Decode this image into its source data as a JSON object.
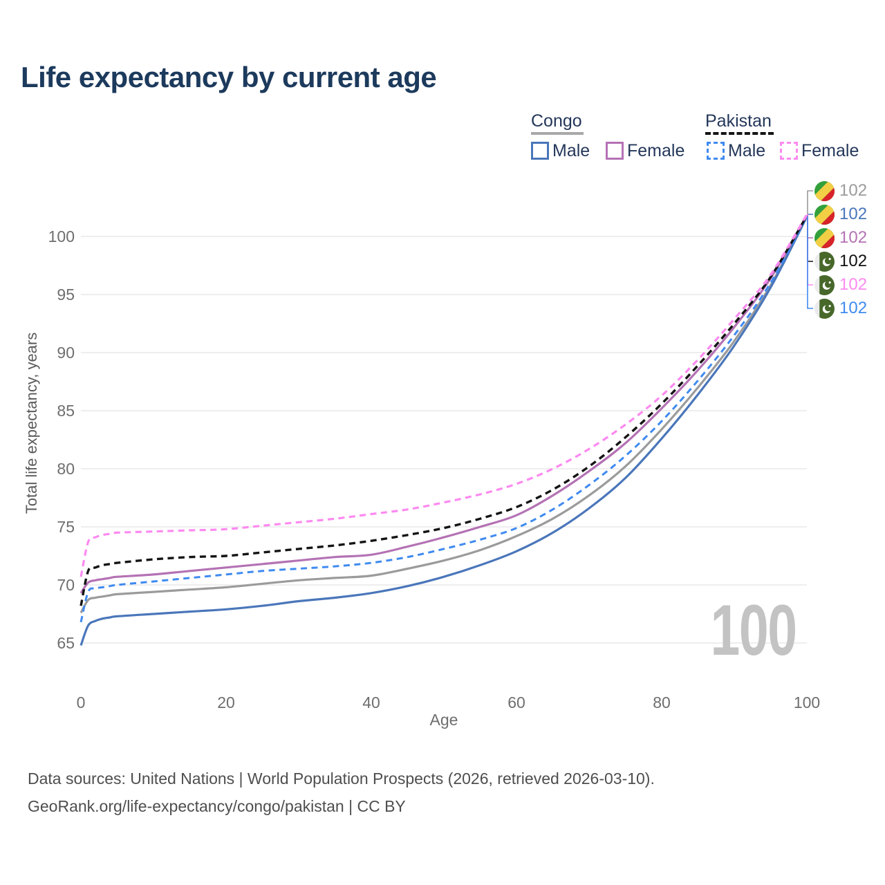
{
  "title": "Life expectancy by current age",
  "watermark_age": "100",
  "legend": {
    "groups": [
      {
        "label": "Congo",
        "underline_style": "solid",
        "underline_color": "#a8a8a8",
        "items": [
          {
            "label": "Male",
            "color": "#4a76ba",
            "dashed": false
          },
          {
            "label": "Female",
            "color": "#b472b4",
            "dashed": false
          }
        ]
      },
      {
        "label": "Pakistan",
        "underline_style": "dashed",
        "underline_color": "#141414",
        "items": [
          {
            "label": "Male",
            "color": "#3f8af0",
            "dashed": true
          },
          {
            "label": "Female",
            "color": "#fc8af0",
            "dashed": true
          }
        ]
      }
    ]
  },
  "end_labels": [
    {
      "flag": "congo",
      "series": "Congo Both sexes",
      "value": "102",
      "color": "#9b9b9b"
    },
    {
      "flag": "congo",
      "series": "Congo Male",
      "value": "102",
      "color": "#4a76ba"
    },
    {
      "flag": "congo",
      "series": "Congo Female",
      "value": "102",
      "color": "#b472b4"
    },
    {
      "flag": "pakistan",
      "series": "Pakistan Both sexes",
      "value": "102",
      "color": "#111111"
    },
    {
      "flag": "pakistan",
      "series": "Pakistan Female",
      "value": "102",
      "color": "#fc8af0"
    },
    {
      "flag": "pakistan",
      "series": "Pakistan Male",
      "value": "102",
      "color": "#3f8af0"
    }
  ],
  "footer": {
    "line1": "Data sources: United Nations | World Population Prospects (2026, retrieved 2026-03-10).",
    "line2": "GeoRank.org/life-expectancy/congo/pakistan | CC BY"
  },
  "chart_data": {
    "type": "line",
    "title": "Life expectancy by current age",
    "xlabel": "Age",
    "ylabel": "Total life expectancy, years",
    "xlim": [
      0,
      100
    ],
    "ylim": [
      63,
      103
    ],
    "x_ticks": [
      0,
      20,
      40,
      60,
      80,
      100
    ],
    "y_ticks": [
      65,
      70,
      75,
      80,
      85,
      90,
      95,
      100
    ],
    "grid": "horizontal",
    "legend_position": "top-right",
    "ages": [
      0,
      1,
      2,
      3,
      4,
      5,
      10,
      15,
      20,
      25,
      30,
      35,
      40,
      45,
      50,
      55,
      60,
      65,
      70,
      75,
      80,
      85,
      90,
      95,
      100
    ],
    "series": [
      {
        "name": "Congo Male",
        "country": "Congo",
        "sex": "Male",
        "color": "#4a76ba",
        "dash": "solid",
        "width": 3.2,
        "values": [
          64.8,
          66.5,
          66.9,
          67.1,
          67.2,
          67.3,
          67.5,
          67.7,
          67.9,
          68.2,
          68.6,
          68.9,
          69.3,
          69.9,
          70.7,
          71.7,
          72.9,
          74.5,
          76.6,
          79.2,
          82.6,
          86.4,
          90.6,
          95.6,
          101.7
        ]
      },
      {
        "name": "Congo Both sexes",
        "country": "Congo",
        "sex": "Both",
        "color": "#9b9b9b",
        "dash": "solid",
        "width": 3.2,
        "values": [
          67.6,
          68.7,
          68.9,
          69.0,
          69.1,
          69.2,
          69.4,
          69.6,
          69.8,
          70.1,
          70.4,
          70.6,
          70.8,
          71.4,
          72.1,
          73.0,
          74.2,
          75.7,
          77.7,
          80.2,
          83.4,
          87.0,
          91.0,
          95.8,
          101.7
        ]
      },
      {
        "name": "Congo Female",
        "country": "Congo",
        "sex": "Female",
        "color": "#b472b4",
        "dash": "solid",
        "width": 3.2,
        "values": [
          69.3,
          70.2,
          70.4,
          70.5,
          70.6,
          70.7,
          70.9,
          71.2,
          71.5,
          71.8,
          72.1,
          72.4,
          72.6,
          73.3,
          74.1,
          75.0,
          76.0,
          77.7,
          79.8,
          82.2,
          85.2,
          88.5,
          92.2,
          96.4,
          101.8
        ]
      },
      {
        "name": "Pakistan Male",
        "country": "Pakistan",
        "sex": "Male",
        "color": "#3f8af0",
        "dash": "dashed",
        "width": 3.0,
        "values": [
          66.8,
          69.4,
          69.7,
          69.8,
          69.9,
          70.0,
          70.3,
          70.6,
          70.9,
          71.2,
          71.4,
          71.6,
          71.9,
          72.4,
          73.1,
          73.9,
          74.9,
          76.5,
          78.6,
          81.1,
          84.1,
          87.6,
          91.5,
          96.0,
          101.7
        ]
      },
      {
        "name": "Pakistan Both sexes",
        "country": "Pakistan",
        "sex": "Both",
        "color": "#141414",
        "dash": "dashed",
        "width": 3.4,
        "values": [
          68.2,
          71.2,
          71.5,
          71.7,
          71.8,
          71.9,
          72.2,
          72.4,
          72.5,
          72.8,
          73.1,
          73.4,
          73.8,
          74.3,
          74.9,
          75.7,
          76.7,
          78.2,
          80.2,
          82.7,
          85.6,
          88.9,
          92.5,
          96.5,
          101.8
        ]
      },
      {
        "name": "Pakistan Female",
        "country": "Pakistan",
        "sex": "Female",
        "color": "#fc8af0",
        "dash": "dashed",
        "width": 3.2,
        "values": [
          70.7,
          73.7,
          74.1,
          74.3,
          74.4,
          74.5,
          74.6,
          74.7,
          74.8,
          75.1,
          75.4,
          75.7,
          76.1,
          76.5,
          77.1,
          77.8,
          78.7,
          80.0,
          81.7,
          83.8,
          86.3,
          89.4,
          92.9,
          96.7,
          101.9
        ]
      }
    ]
  }
}
